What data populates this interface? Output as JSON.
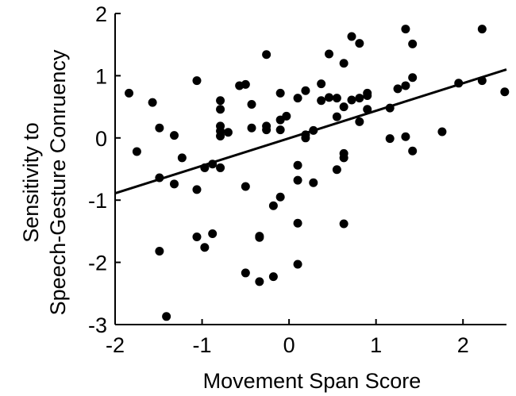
{
  "chart_data": {
    "type": "scatter",
    "title": "",
    "xlabel": "Movement Span Score",
    "ylabel_lines": [
      "Sensitivity to",
      "Speech-Gesture Conruency"
    ],
    "xlim": [
      -2,
      2.5
    ],
    "ylim": [
      -3,
      2
    ],
    "xticks": [
      -2,
      -1,
      0,
      1,
      2
    ],
    "yticks": [
      -3,
      -2,
      -1,
      0,
      1,
      2
    ],
    "grid": false,
    "marker_color": "#000000",
    "trend_line": {
      "x": [
        -2,
        2.5
      ],
      "y": [
        -0.89,
        1.1
      ]
    },
    "points": [
      {
        "x": -1.84,
        "y": 0.72
      },
      {
        "x": -1.75,
        "y": -0.22
      },
      {
        "x": -1.57,
        "y": 0.57
      },
      {
        "x": -1.49,
        "y": 0.16
      },
      {
        "x": -1.49,
        "y": -0.64
      },
      {
        "x": -1.49,
        "y": -1.82
      },
      {
        "x": -1.41,
        "y": -2.87
      },
      {
        "x": -1.32,
        "y": 0.04
      },
      {
        "x": -1.32,
        "y": -0.74
      },
      {
        "x": -1.23,
        "y": -0.32
      },
      {
        "x": -1.06,
        "y": 0.92
      },
      {
        "x": -1.06,
        "y": -0.83
      },
      {
        "x": -1.06,
        "y": -1.59
      },
      {
        "x": -0.97,
        "y": -0.48
      },
      {
        "x": -0.97,
        "y": -1.76
      },
      {
        "x": -0.88,
        "y": -0.42
      },
      {
        "x": -0.88,
        "y": -1.54
      },
      {
        "x": -0.79,
        "y": 0.6
      },
      {
        "x": -0.79,
        "y": 0.46
      },
      {
        "x": -0.79,
        "y": 0.19
      },
      {
        "x": -0.79,
        "y": 0.11
      },
      {
        "x": -0.79,
        "y": 0.03
      },
      {
        "x": -0.79,
        "y": -0.48
      },
      {
        "x": -0.7,
        "y": 0.09
      },
      {
        "x": -0.57,
        "y": 0.84
      },
      {
        "x": -0.5,
        "y": 0.86
      },
      {
        "x": -0.5,
        "y": -0.78
      },
      {
        "x": -0.5,
        "y": -2.17
      },
      {
        "x": -0.43,
        "y": 0.54
      },
      {
        "x": -0.43,
        "y": 0.16
      },
      {
        "x": -0.34,
        "y": -1.58
      },
      {
        "x": -0.34,
        "y": -1.6
      },
      {
        "x": -0.34,
        "y": -2.31
      },
      {
        "x": -0.26,
        "y": 1.34
      },
      {
        "x": -0.26,
        "y": 0.19
      },
      {
        "x": -0.26,
        "y": 0.13
      },
      {
        "x": -0.18,
        "y": -1.09
      },
      {
        "x": -0.18,
        "y": -2.23
      },
      {
        "x": -0.1,
        "y": 0.72
      },
      {
        "x": -0.1,
        "y": 0.29
      },
      {
        "x": -0.1,
        "y": 0.13
      },
      {
        "x": -0.1,
        "y": -0.95
      },
      {
        "x": -0.03,
        "y": 0.35
      },
      {
        "x": 0.1,
        "y": 0.64
      },
      {
        "x": 0.1,
        "y": -0.44
      },
      {
        "x": 0.1,
        "y": -0.68
      },
      {
        "x": 0.1,
        "y": -1.37
      },
      {
        "x": 0.1,
        "y": -2.03
      },
      {
        "x": 0.19,
        "y": 0.76
      },
      {
        "x": 0.19,
        "y": 0.05
      },
      {
        "x": 0.19,
        "y": 0.0
      },
      {
        "x": 0.28,
        "y": 0.12
      },
      {
        "x": 0.28,
        "y": -0.72
      },
      {
        "x": 0.37,
        "y": 0.87
      },
      {
        "x": 0.37,
        "y": 0.6
      },
      {
        "x": 0.46,
        "y": 1.35
      },
      {
        "x": 0.46,
        "y": 0.65
      },
      {
        "x": 0.55,
        "y": 0.64
      },
      {
        "x": 0.55,
        "y": 0.34
      },
      {
        "x": 0.55,
        "y": -0.51
      },
      {
        "x": 0.63,
        "y": 1.2
      },
      {
        "x": 0.63,
        "y": 0.5
      },
      {
        "x": 0.63,
        "y": -0.25
      },
      {
        "x": 0.63,
        "y": -0.32
      },
      {
        "x": 0.63,
        "y": -1.38
      },
      {
        "x": 0.72,
        "y": 1.63
      },
      {
        "x": 0.72,
        "y": 0.61
      },
      {
        "x": 0.81,
        "y": 1.52
      },
      {
        "x": 0.81,
        "y": 0.64
      },
      {
        "x": 0.81,
        "y": 0.26
      },
      {
        "x": 0.9,
        "y": 0.72
      },
      {
        "x": 0.9,
        "y": 0.68
      },
      {
        "x": 0.9,
        "y": 0.46
      },
      {
        "x": 1.16,
        "y": 0.48
      },
      {
        "x": 1.16,
        "y": -0.01
      },
      {
        "x": 1.25,
        "y": 0.79
      },
      {
        "x": 1.34,
        "y": 1.75
      },
      {
        "x": 1.34,
        "y": 0.84
      },
      {
        "x": 1.34,
        "y": 0.02
      },
      {
        "x": 1.42,
        "y": 1.51
      },
      {
        "x": 1.42,
        "y": 0.97
      },
      {
        "x": 1.42,
        "y": -0.21
      },
      {
        "x": 1.76,
        "y": 0.1
      },
      {
        "x": 1.95,
        "y": 0.88
      },
      {
        "x": 2.22,
        "y": 1.75
      },
      {
        "x": 2.22,
        "y": 0.92
      },
      {
        "x": 2.48,
        "y": 0.74
      }
    ]
  }
}
